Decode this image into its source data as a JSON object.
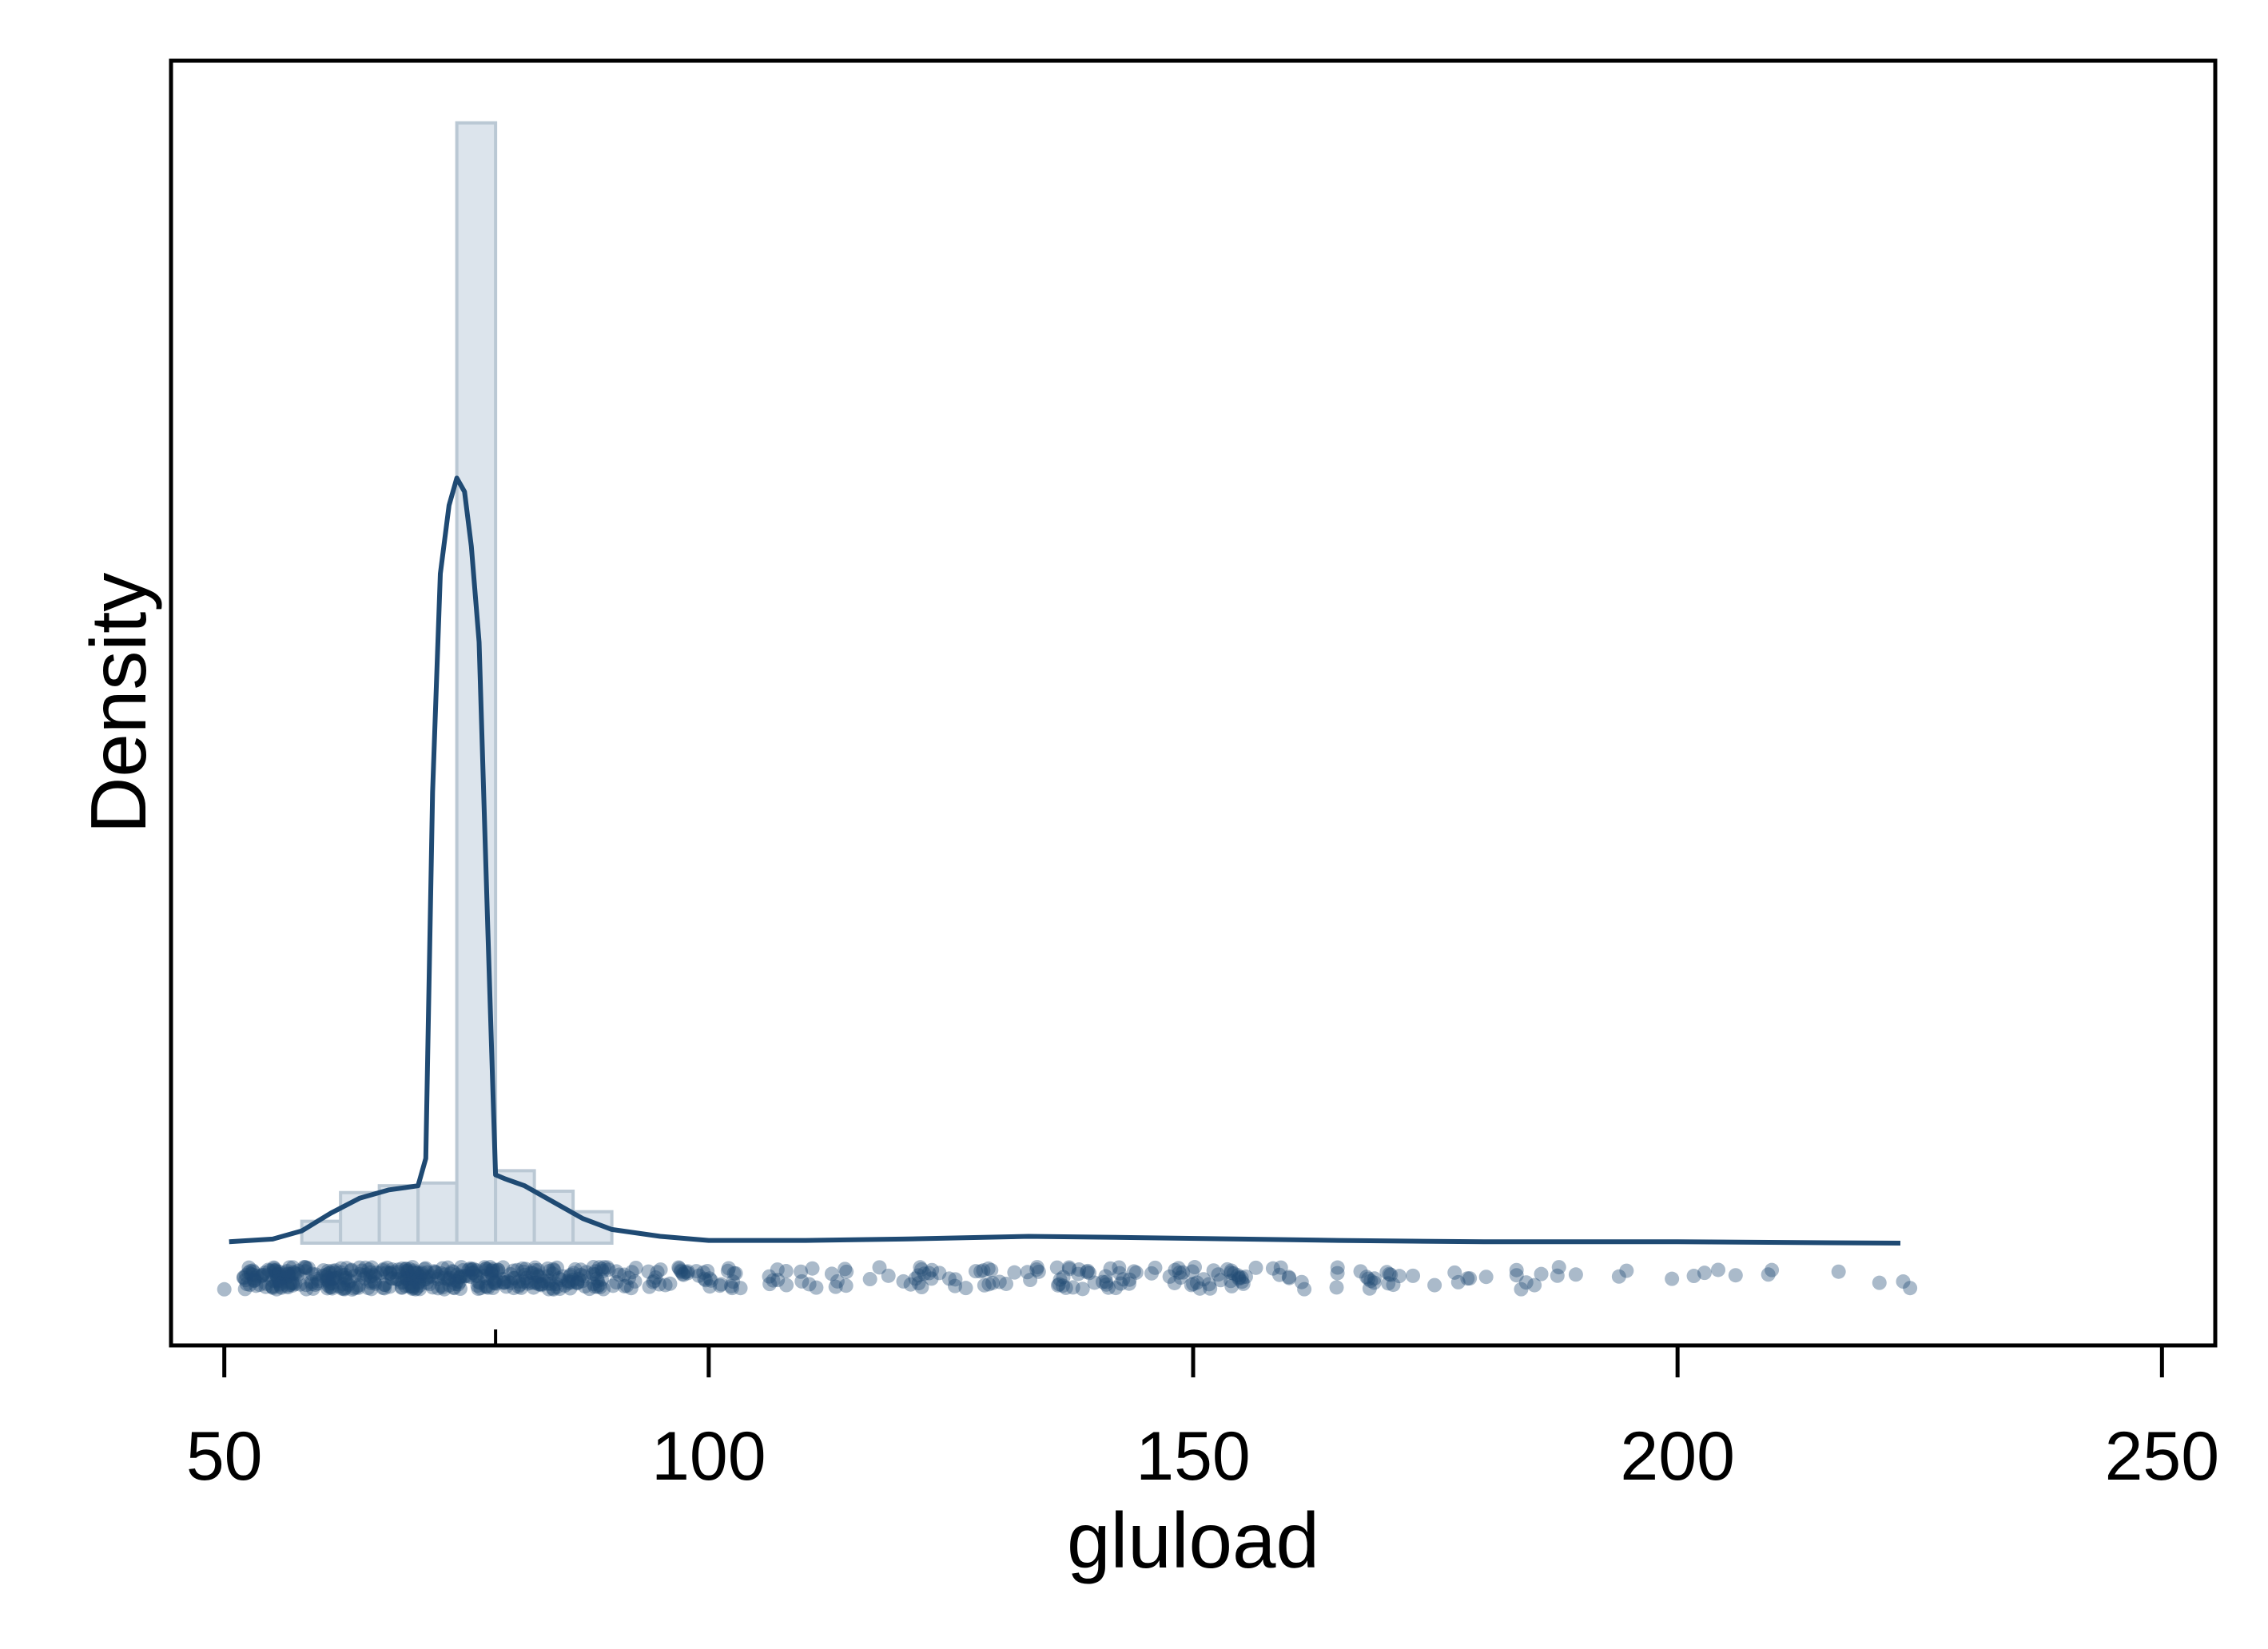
{
  "chart_data": {
    "type": "histogram-density-rug",
    "xlabel": "gluload",
    "ylabel": "Density",
    "xlim": [
      44.5,
      255.5
    ],
    "xticks": [
      50,
      100,
      150,
      200,
      250
    ],
    "y_ticks_labeled": false,
    "grid": false,
    "legend": "none",
    "mean_marker_x": 78,
    "histogram": {
      "bin_width": 4,
      "bins": [
        {
          "x0": 58,
          "x1": 62,
          "height": 0.16
        },
        {
          "x0": 62,
          "x1": 66,
          "height": 0.37
        },
        {
          "x0": 66,
          "x1": 70,
          "height": 0.42
        },
        {
          "x0": 70,
          "x1": 74,
          "height": 0.44
        },
        {
          "x0": 74,
          "x1": 78,
          "height": 8.2
        },
        {
          "x0": 78,
          "x1": 82,
          "height": 0.53
        },
        {
          "x0": 82,
          "x1": 86,
          "height": 0.38
        },
        {
          "x0": 86,
          "x1": 90,
          "height": 0.23
        }
      ]
    },
    "density": [
      [
        50.5,
        0.01
      ],
      [
        55,
        0.03
      ],
      [
        58,
        0.09
      ],
      [
        61,
        0.22
      ],
      [
        64,
        0.33
      ],
      [
        67,
        0.39
      ],
      [
        70,
        0.42
      ],
      [
        70.8,
        0.62
      ],
      [
        71.5,
        3.3
      ],
      [
        72.3,
        4.9
      ],
      [
        73.2,
        5.4
      ],
      [
        74,
        5.6
      ],
      [
        74.8,
        5.5
      ],
      [
        75.5,
        5.1
      ],
      [
        76.3,
        4.4
      ],
      [
        77.2,
        2.3
      ],
      [
        78,
        0.5
      ],
      [
        79,
        0.47
      ],
      [
        81,
        0.42
      ],
      [
        84,
        0.3
      ],
      [
        87,
        0.18
      ],
      [
        90,
        0.1
      ],
      [
        95,
        0.05
      ],
      [
        100,
        0.02
      ],
      [
        110,
        0.02
      ],
      [
        120,
        0.03
      ],
      [
        133,
        0.05
      ],
      [
        145,
        0.04
      ],
      [
        155,
        0.03
      ],
      [
        165,
        0.02
      ],
      [
        180,
        0.01
      ],
      [
        200,
        0.01
      ],
      [
        223,
        0.0
      ]
    ],
    "rug_range": [
      50,
      224
    ]
  }
}
